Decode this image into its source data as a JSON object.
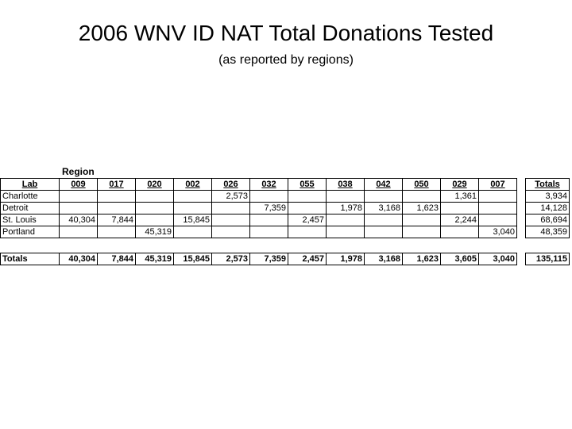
{
  "title": "2006 WNV ID NAT Total Donations Tested",
  "subtitle": "(as reported by regions)",
  "region_label": "Region",
  "lab_header": "Lab",
  "regions": [
    "009",
    "017",
    "020",
    "002",
    "026",
    "032",
    "055",
    "038",
    "042",
    "050",
    "029",
    "007"
  ],
  "totals_header": "Totals",
  "rows": [
    {
      "lab": "Charlotte",
      "cells": [
        "",
        "",
        "",
        "",
        "2,573",
        "",
        "",
        "",
        "",
        "",
        "1,361",
        ""
      ],
      "total": "3,934"
    },
    {
      "lab": "Detroit",
      "cells": [
        "",
        "",
        "",
        "",
        "",
        "7,359",
        "",
        "1,978",
        "3,168",
        "1,623",
        "",
        ""
      ],
      "total": "14,128"
    },
    {
      "lab": "St. Louis",
      "cells": [
        "40,304",
        "7,844",
        "",
        "15,845",
        "",
        "",
        "2,457",
        "",
        "",
        "",
        "2,244",
        ""
      ],
      "total": "68,694"
    },
    {
      "lab": "Portland",
      "cells": [
        "",
        "",
        "45,319",
        "",
        "",
        "",
        "",
        "",
        "",
        "",
        "",
        "3,040"
      ],
      "total": "48,359"
    }
  ],
  "totals_row": {
    "label": "Totals",
    "cells": [
      "40,304",
      "7,844",
      "45,319",
      "15,845",
      "2,573",
      "7,359",
      "2,457",
      "1,978",
      "3,168",
      "1,623",
      "3,605",
      "3,040"
    ],
    "grand_total": "135,115"
  }
}
